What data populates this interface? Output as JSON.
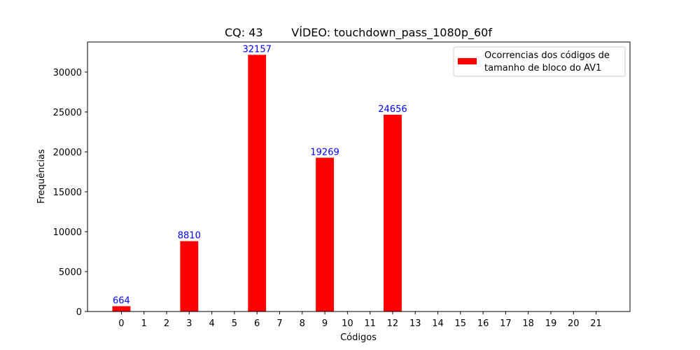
{
  "chart_data": {
    "type": "bar",
    "title": "CQ: 43        VÍDEO: touchdown_pass_1080p_60f",
    "xlabel": "Códigos",
    "ylabel": "Frequências",
    "categories": [
      "0",
      "1",
      "2",
      "3",
      "4",
      "5",
      "6",
      "7",
      "8",
      "9",
      "10",
      "11",
      "12",
      "13",
      "14",
      "15",
      "16",
      "17",
      "18",
      "19",
      "20",
      "21"
    ],
    "series": [
      {
        "name": "Ocorrencias dos códigos de tamanho de bloco do AV1",
        "legend_lines": [
          "Ocorrencias dos códigos de",
          "tamanho de bloco do AV1"
        ],
        "values": [
          664,
          0,
          0,
          8810,
          0,
          0,
          32157,
          0,
          0,
          19269,
          0,
          0,
          24656,
          0,
          0,
          0,
          0,
          0,
          0,
          0,
          0,
          0
        ],
        "color": "#ff0000"
      }
    ],
    "data_labels": [
      {
        "category": "0",
        "text": "664"
      },
      {
        "category": "3",
        "text": "8810"
      },
      {
        "category": "6",
        "text": "32157"
      },
      {
        "category": "9",
        "text": "19269"
      },
      {
        "category": "12",
        "text": "24656"
      }
    ],
    "data_label_color": "#0000ff",
    "yticks": [
      0,
      5000,
      10000,
      15000,
      20000,
      25000,
      30000
    ],
    "ytick_labels": [
      "0",
      "5000",
      "10000",
      "15000",
      "20000",
      "25000",
      "30000"
    ],
    "ylim": [
      0,
      33765
    ],
    "xlim": [
      -1.5,
      22.5
    ],
    "grid": false,
    "legend_position": "top-right"
  }
}
